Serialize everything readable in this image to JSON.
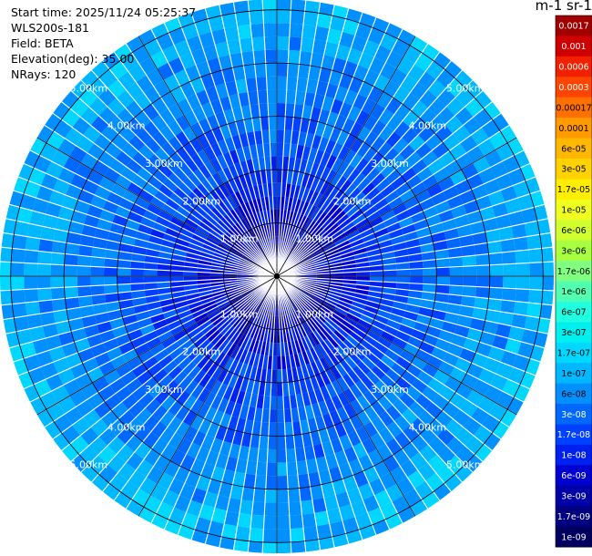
{
  "info": {
    "start_time": "Start time: 2025/11/24 05:25:37",
    "instrument": "WLS200s-181",
    "field": "Field: BETA",
    "elevation": "Elevation(deg): 35.00",
    "nrays": "NRays: 120"
  },
  "colorbar": {
    "title": "m-1 sr-1",
    "ticks": [
      "0.0017",
      "0.001",
      "0.0006",
      "0.0003",
      "0.00017",
      "0.0001",
      "6e-05",
      "3e-05",
      "1.7e-05",
      "1e-05",
      "6e-06",
      "3e-06",
      "1.7e-06",
      "1e-06",
      "6e-07",
      "3e-07",
      "1.7e-07",
      "1e-07",
      "6e-08",
      "3e-08",
      "1.7e-08",
      "1e-08",
      "6e-09",
      "3e-09",
      "1.7e-09",
      "1e-09"
    ],
    "colors": [
      "#a00000",
      "#d00000",
      "#f02000",
      "#ff4400",
      "#ff7000",
      "#ff9a00",
      "#ffb800",
      "#ffd200",
      "#ffee00",
      "#f0ff20",
      "#d0ff30",
      "#a8ff40",
      "#80ff80",
      "#50ffb0",
      "#20ffe0",
      "#00f0f0",
      "#00d8ff",
      "#00b8ff",
      "#0090ff",
      "#0068ff",
      "#0040ff",
      "#0020f0",
      "#0000d0",
      "#0000a8",
      "#000080",
      "#000060"
    ]
  },
  "chart_data": {
    "type": "polar-ppi",
    "field": "BETA",
    "n_rays": 120,
    "elevation_deg": 35.0,
    "range_rings_km": [
      1,
      2,
      3,
      4,
      5
    ],
    "ring_labels": [
      "1.00km",
      "2.00km",
      "3.00km",
      "4.00km",
      "5.00km"
    ],
    "spokes_deg": [
      0,
      30,
      60,
      90,
      120,
      150,
      180,
      210,
      240,
      270,
      300,
      330
    ],
    "max_range_km": 5.2,
    "profile": [
      {
        "range_km": 0.2,
        "level": 23
      },
      {
        "range_km": 1.0,
        "level": 22
      },
      {
        "range_km": 2.0,
        "level": 20
      },
      {
        "range_km": 3.0,
        "level": 19
      },
      {
        "range_km": 4.0,
        "level": 18
      },
      {
        "range_km": 5.0,
        "level": 17
      }
    ]
  }
}
